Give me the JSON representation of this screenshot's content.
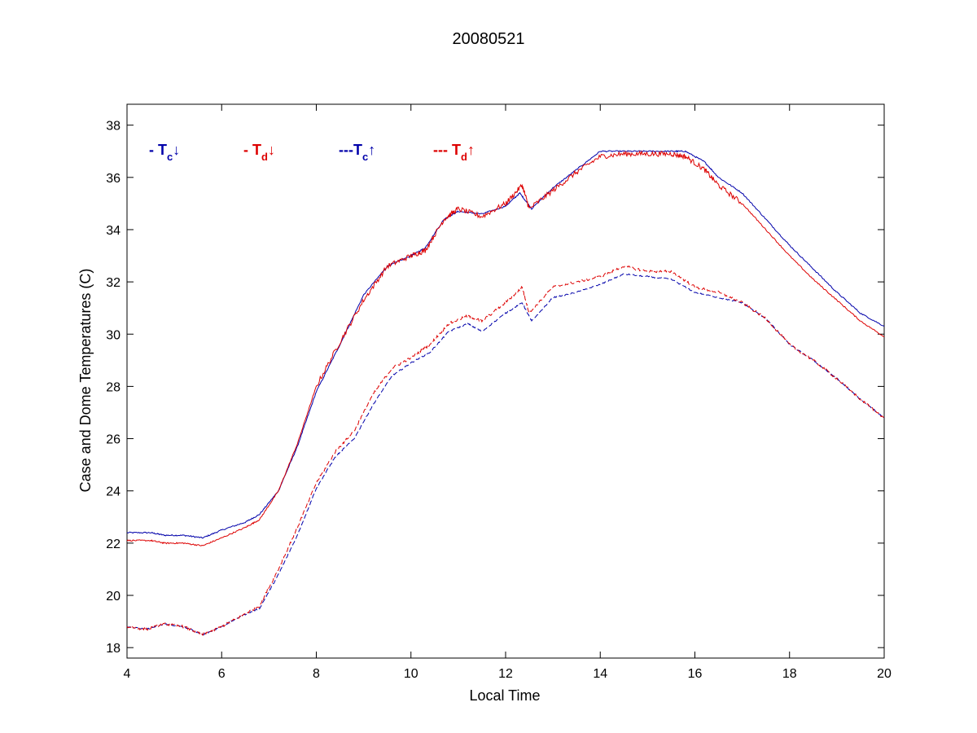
{
  "chart_data": {
    "type": "line",
    "title": "20080521",
    "xlabel": "Local Time",
    "ylabel": "Case and Dome Temperatures (C)",
    "xlim": [
      4,
      20
    ],
    "ylim": [
      17.6,
      38.8
    ],
    "xticks": [
      4,
      6,
      8,
      10,
      12,
      14,
      16,
      18,
      20
    ],
    "yticks": [
      18,
      20,
      22,
      24,
      26,
      28,
      30,
      32,
      34,
      36,
      38
    ],
    "grid": false,
    "legend": [
      {
        "prefix": "- T",
        "sub": "c",
        "arrow": "↓",
        "color": "#0000aa"
      },
      {
        "prefix": "- T",
        "sub": "d",
        "arrow": "↓",
        "color": "#dd0000"
      },
      {
        "prefix": "---T",
        "sub": "c",
        "arrow": "↑",
        "color": "#0000aa"
      },
      {
        "prefix": "--- T",
        "sub": "d",
        "arrow": "↑",
        "color": "#dd0000"
      }
    ],
    "series": [
      {
        "color": "#0000aa",
        "dash": "solid",
        "x": [
          4,
          4.5,
          4.8,
          5.2,
          5.6,
          6.0,
          6.5,
          6.8,
          7.2,
          7.6,
          8.0,
          8.5,
          9.0,
          9.5,
          10.0,
          10.3,
          10.7,
          11.0,
          11.5,
          12.0,
          12.3,
          12.55,
          13.0,
          13.5,
          14.0,
          14.5,
          15.0,
          15.5,
          15.8,
          16.2,
          16.5,
          17.0,
          17.5,
          18.0,
          18.5,
          19.0,
          19.5,
          20.0
        ],
        "y": [
          22.4,
          22.4,
          22.3,
          22.3,
          22.2,
          22.5,
          22.8,
          23.1,
          24.0,
          25.7,
          27.8,
          29.6,
          31.5,
          32.6,
          33.0,
          33.3,
          34.4,
          34.7,
          34.6,
          34.9,
          35.4,
          34.8,
          35.6,
          36.3,
          37.0,
          37.0,
          37.0,
          37.0,
          37.0,
          36.6,
          36.0,
          35.4,
          34.4,
          33.4,
          32.5,
          31.6,
          30.8,
          30.3
        ]
      },
      {
        "color": "#dd0000",
        "dash": "solid",
        "x": [
          4,
          4.5,
          4.8,
          5.2,
          5.6,
          6.0,
          6.5,
          6.8,
          7.2,
          7.6,
          8.0,
          8.5,
          9.0,
          9.5,
          10.0,
          10.3,
          10.7,
          11.0,
          11.5,
          12.0,
          12.35,
          12.5,
          13.0,
          13.5,
          14.0,
          14.5,
          15.0,
          15.5,
          15.8,
          16.2,
          16.5,
          17.0,
          17.5,
          18.0,
          18.5,
          19.0,
          19.5,
          20.0
        ],
        "y": [
          22.1,
          22.1,
          22.0,
          22.0,
          21.9,
          22.2,
          22.6,
          22.9,
          24.0,
          25.8,
          28.0,
          29.7,
          31.3,
          32.6,
          33.0,
          33.2,
          34.4,
          34.8,
          34.5,
          35.0,
          35.7,
          34.8,
          35.5,
          36.2,
          36.8,
          36.9,
          36.9,
          36.9,
          36.8,
          36.3,
          35.7,
          35.0,
          34.0,
          33.0,
          32.1,
          31.3,
          30.5,
          29.9
        ]
      },
      {
        "color": "#0000aa",
        "dash": "dashed",
        "x": [
          4,
          4.4,
          4.8,
          5.2,
          5.6,
          6.0,
          6.4,
          6.8,
          7.2,
          7.6,
          8.0,
          8.4,
          8.8,
          9.2,
          9.6,
          10.0,
          10.4,
          10.8,
          11.2,
          11.5,
          12.0,
          12.35,
          12.55,
          13.0,
          13.5,
          14.0,
          14.5,
          15.0,
          15.5,
          16.0,
          16.5,
          17.0,
          17.5,
          18.0,
          18.5,
          19.0,
          19.5,
          20.0
        ],
        "y": [
          18.8,
          18.7,
          18.9,
          18.8,
          18.5,
          18.8,
          19.2,
          19.5,
          20.8,
          22.3,
          24.1,
          25.3,
          26.0,
          27.3,
          28.4,
          28.9,
          29.3,
          30.1,
          30.4,
          30.1,
          30.8,
          31.2,
          30.5,
          31.4,
          31.6,
          31.9,
          32.3,
          32.2,
          32.1,
          31.6,
          31.4,
          31.2,
          30.6,
          29.6,
          29.0,
          28.3,
          27.5,
          26.8
        ]
      },
      {
        "color": "#dd0000",
        "dash": "dashed",
        "x": [
          4,
          4.4,
          4.8,
          5.2,
          5.6,
          6.0,
          6.4,
          6.8,
          7.2,
          7.6,
          8.0,
          8.4,
          8.8,
          9.2,
          9.6,
          10.0,
          10.4,
          10.8,
          11.2,
          11.5,
          12.0,
          12.35,
          12.5,
          13.0,
          13.5,
          14.0,
          14.5,
          15.0,
          15.5,
          16.0,
          16.5,
          17.0,
          17.5,
          18.0,
          18.5,
          19.0,
          19.5,
          20.0
        ],
        "y": [
          18.8,
          18.7,
          18.9,
          18.8,
          18.5,
          18.8,
          19.2,
          19.6,
          21.0,
          22.6,
          24.3,
          25.5,
          26.3,
          27.7,
          28.7,
          29.1,
          29.6,
          30.4,
          30.7,
          30.5,
          31.2,
          31.8,
          30.8,
          31.8,
          32.0,
          32.2,
          32.6,
          32.4,
          32.4,
          31.8,
          31.6,
          31.2,
          30.6,
          29.6,
          29.0,
          28.3,
          27.5,
          26.8
        ]
      }
    ]
  }
}
